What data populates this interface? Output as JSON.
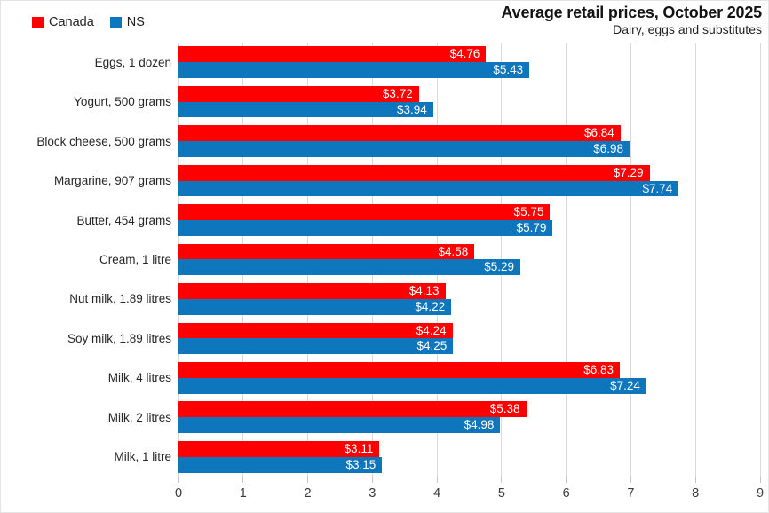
{
  "header": {
    "title": "Average retail prices, October 2025",
    "subtitle": "Dairy, eggs and substitutes"
  },
  "chart_data": {
    "type": "bar",
    "orientation": "horizontal",
    "title": "Average retail prices, October 2025",
    "subtitle": "Dairy, eggs and substitutes",
    "categories": [
      "Eggs, 1 dozen",
      "Yogurt, 500 grams",
      "Block cheese, 500 grams",
      "Margarine, 907 grams",
      "Butter, 454 grams",
      "Cream, 1 litre",
      "Nut milk, 1.89 litres",
      "Soy milk, 1.89 litres",
      "Milk, 4 litres",
      "Milk, 2 litres",
      "Milk, 1 litre"
    ],
    "series": [
      {
        "name": "Canada",
        "color": "#ff0000",
        "values": [
          4.76,
          3.72,
          6.84,
          7.29,
          5.75,
          4.58,
          4.13,
          4.24,
          6.83,
          5.38,
          3.11
        ]
      },
      {
        "name": "NS",
        "color": "#0e76bd",
        "values": [
          5.43,
          3.94,
          6.98,
          7.74,
          5.79,
          5.29,
          4.22,
          4.25,
          7.24,
          4.98,
          3.15
        ]
      }
    ],
    "value_prefix": "$",
    "value_decimals": 2,
    "value_label_style": "white, inside bar end",
    "xlim": [
      0,
      9
    ],
    "xticks": [
      0,
      1,
      2,
      3,
      4,
      5,
      6,
      7,
      8,
      9
    ],
    "grid": true,
    "grid_color": "#d9d9d9",
    "legend_position": "top-left"
  }
}
